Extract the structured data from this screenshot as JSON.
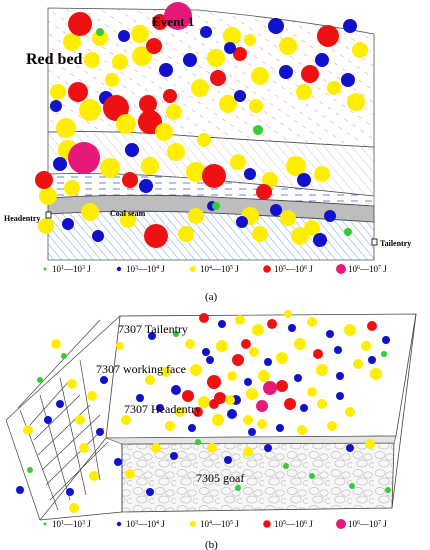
{
  "panel_a": {
    "event_label": "Event 1",
    "strata_label": "Red bed",
    "coal_label": "Coal seam",
    "left_label": "Headentry",
    "right_label": "Tailentry",
    "caption": "(a)"
  },
  "panel_b": {
    "labels": [
      "7307 Tailentry",
      "7307 working face",
      "7307 Headentry",
      "7305 goaf"
    ],
    "caption": "(b)"
  },
  "legend": {
    "items": [
      {
        "base1": "10",
        "exp1": "1",
        "base2": "10",
        "exp2": "3",
        "unit": " J",
        "color": "#33cc33",
        "size": 1
      },
      {
        "base1": "10",
        "exp1": "3",
        "base2": "10",
        "exp2": "4",
        "unit": " J",
        "color": "#1111cc",
        "size": 2
      },
      {
        "base1": "10",
        "exp1": "4",
        "base2": "10",
        "exp2": "5",
        "unit": " J",
        "color": "#ffee00",
        "size": 3
      },
      {
        "base1": "10",
        "exp1": "5",
        "base2": "10",
        "exp2": "6",
        "unit": " J",
        "color": "#ee1111",
        "size": 4
      },
      {
        "base1": "10",
        "exp1": "6",
        "base2": "10",
        "exp2": "7",
        "unit": " J",
        "color": "#e6197a",
        "size": 5
      }
    ],
    "separator": "—"
  },
  "colors": {
    "green": "#33cc33",
    "blue": "#1111cc",
    "yellow": "#ffee00",
    "red": "#ee1111",
    "magenta": "#e6197a"
  }
}
